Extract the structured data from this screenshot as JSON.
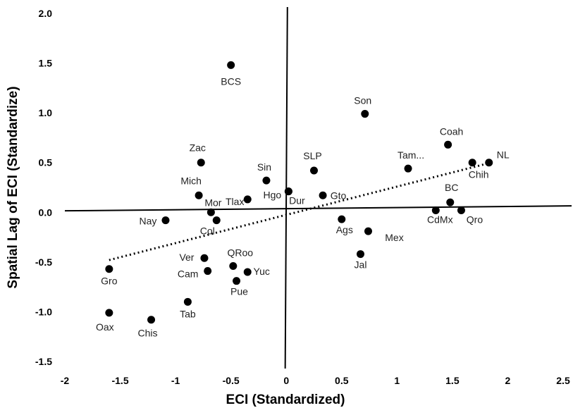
{
  "chart_data": {
    "type": "scatter",
    "xlabel": "ECI (Standardized)",
    "ylabel": "Spatial Lag of ECI (Standardize)",
    "xlim": [
      -2,
      2.5
    ],
    "ylim": [
      -1.5,
      2.0
    ],
    "x_ticks": [
      "-2",
      "-1.5",
      "-1",
      "-0.5",
      "0",
      "0.5",
      "1",
      "1.5",
      "2",
      "2.5"
    ],
    "y_ticks": [
      "2.0",
      "1.5",
      "1.0",
      "0.5",
      "0.0",
      "-0.5",
      "-1.0",
      "-1.5"
    ],
    "grid": false,
    "trendline": {
      "style": "dotted",
      "x": [
        -1.6,
        1.85
      ],
      "y": [
        -0.48,
        0.5
      ]
    },
    "points": [
      {
        "label": "BCS",
        "x": -0.5,
        "y": 1.48
      },
      {
        "label": "Son",
        "x": 0.71,
        "y": 0.99
      },
      {
        "label": "Coah",
        "x": 1.46,
        "y": 0.68
      },
      {
        "label": "NL",
        "x": 1.83,
        "y": 0.5
      },
      {
        "label": "Chih",
        "x": 1.68,
        "y": 0.5
      },
      {
        "label": "Tam...",
        "x": 1.1,
        "y": 0.44
      },
      {
        "label": "Zac",
        "x": -0.77,
        "y": 0.5
      },
      {
        "label": "SLP",
        "x": 0.25,
        "y": 0.42
      },
      {
        "label": "Sin",
        "x": -0.18,
        "y": 0.32
      },
      {
        "label": "Dur",
        "x": 0.02,
        "y": 0.21
      },
      {
        "label": "Mich",
        "x": -0.79,
        "y": 0.17
      },
      {
        "label": "Gto",
        "x": 0.33,
        "y": 0.17
      },
      {
        "label": "Tlax",
        "x": -0.35,
        "y": 0.13
      },
      {
        "label": "Hgo",
        "x": 0.02,
        "y": 0.21
      },
      {
        "label": "BC",
        "x": 1.48,
        "y": 0.1
      },
      {
        "label": "Mor",
        "x": -0.68,
        "y": 0.0
      },
      {
        "label": "CdMx",
        "x": 1.35,
        "y": 0.02
      },
      {
        "label": "Qro",
        "x": 1.58,
        "y": 0.02
      },
      {
        "label": "Nay",
        "x": -1.09,
        "y": -0.08
      },
      {
        "label": "Col",
        "x": -0.63,
        "y": -0.08
      },
      {
        "label": "Ags",
        "x": 0.5,
        "y": -0.07
      },
      {
        "label": "Mex",
        "x": 0.74,
        "y": -0.19
      },
      {
        "label": "Ver",
        "x": -0.74,
        "y": -0.46
      },
      {
        "label": "QRoo",
        "x": -0.48,
        "y": -0.54
      },
      {
        "label": "Jal",
        "x": 0.67,
        "y": -0.42
      },
      {
        "label": "Gro",
        "x": -1.6,
        "y": -0.57
      },
      {
        "label": "Cam",
        "x": -0.71,
        "y": -0.59
      },
      {
        "label": "Yuc",
        "x": -0.35,
        "y": -0.6
      },
      {
        "label": "Pue",
        "x": -0.45,
        "y": -0.69
      },
      {
        "label": "Tab",
        "x": -0.89,
        "y": -0.9
      },
      {
        "label": "Oax",
        "x": -1.6,
        "y": -1.01
      },
      {
        "label": "Chis",
        "x": -1.22,
        "y": -1.08
      }
    ]
  }
}
